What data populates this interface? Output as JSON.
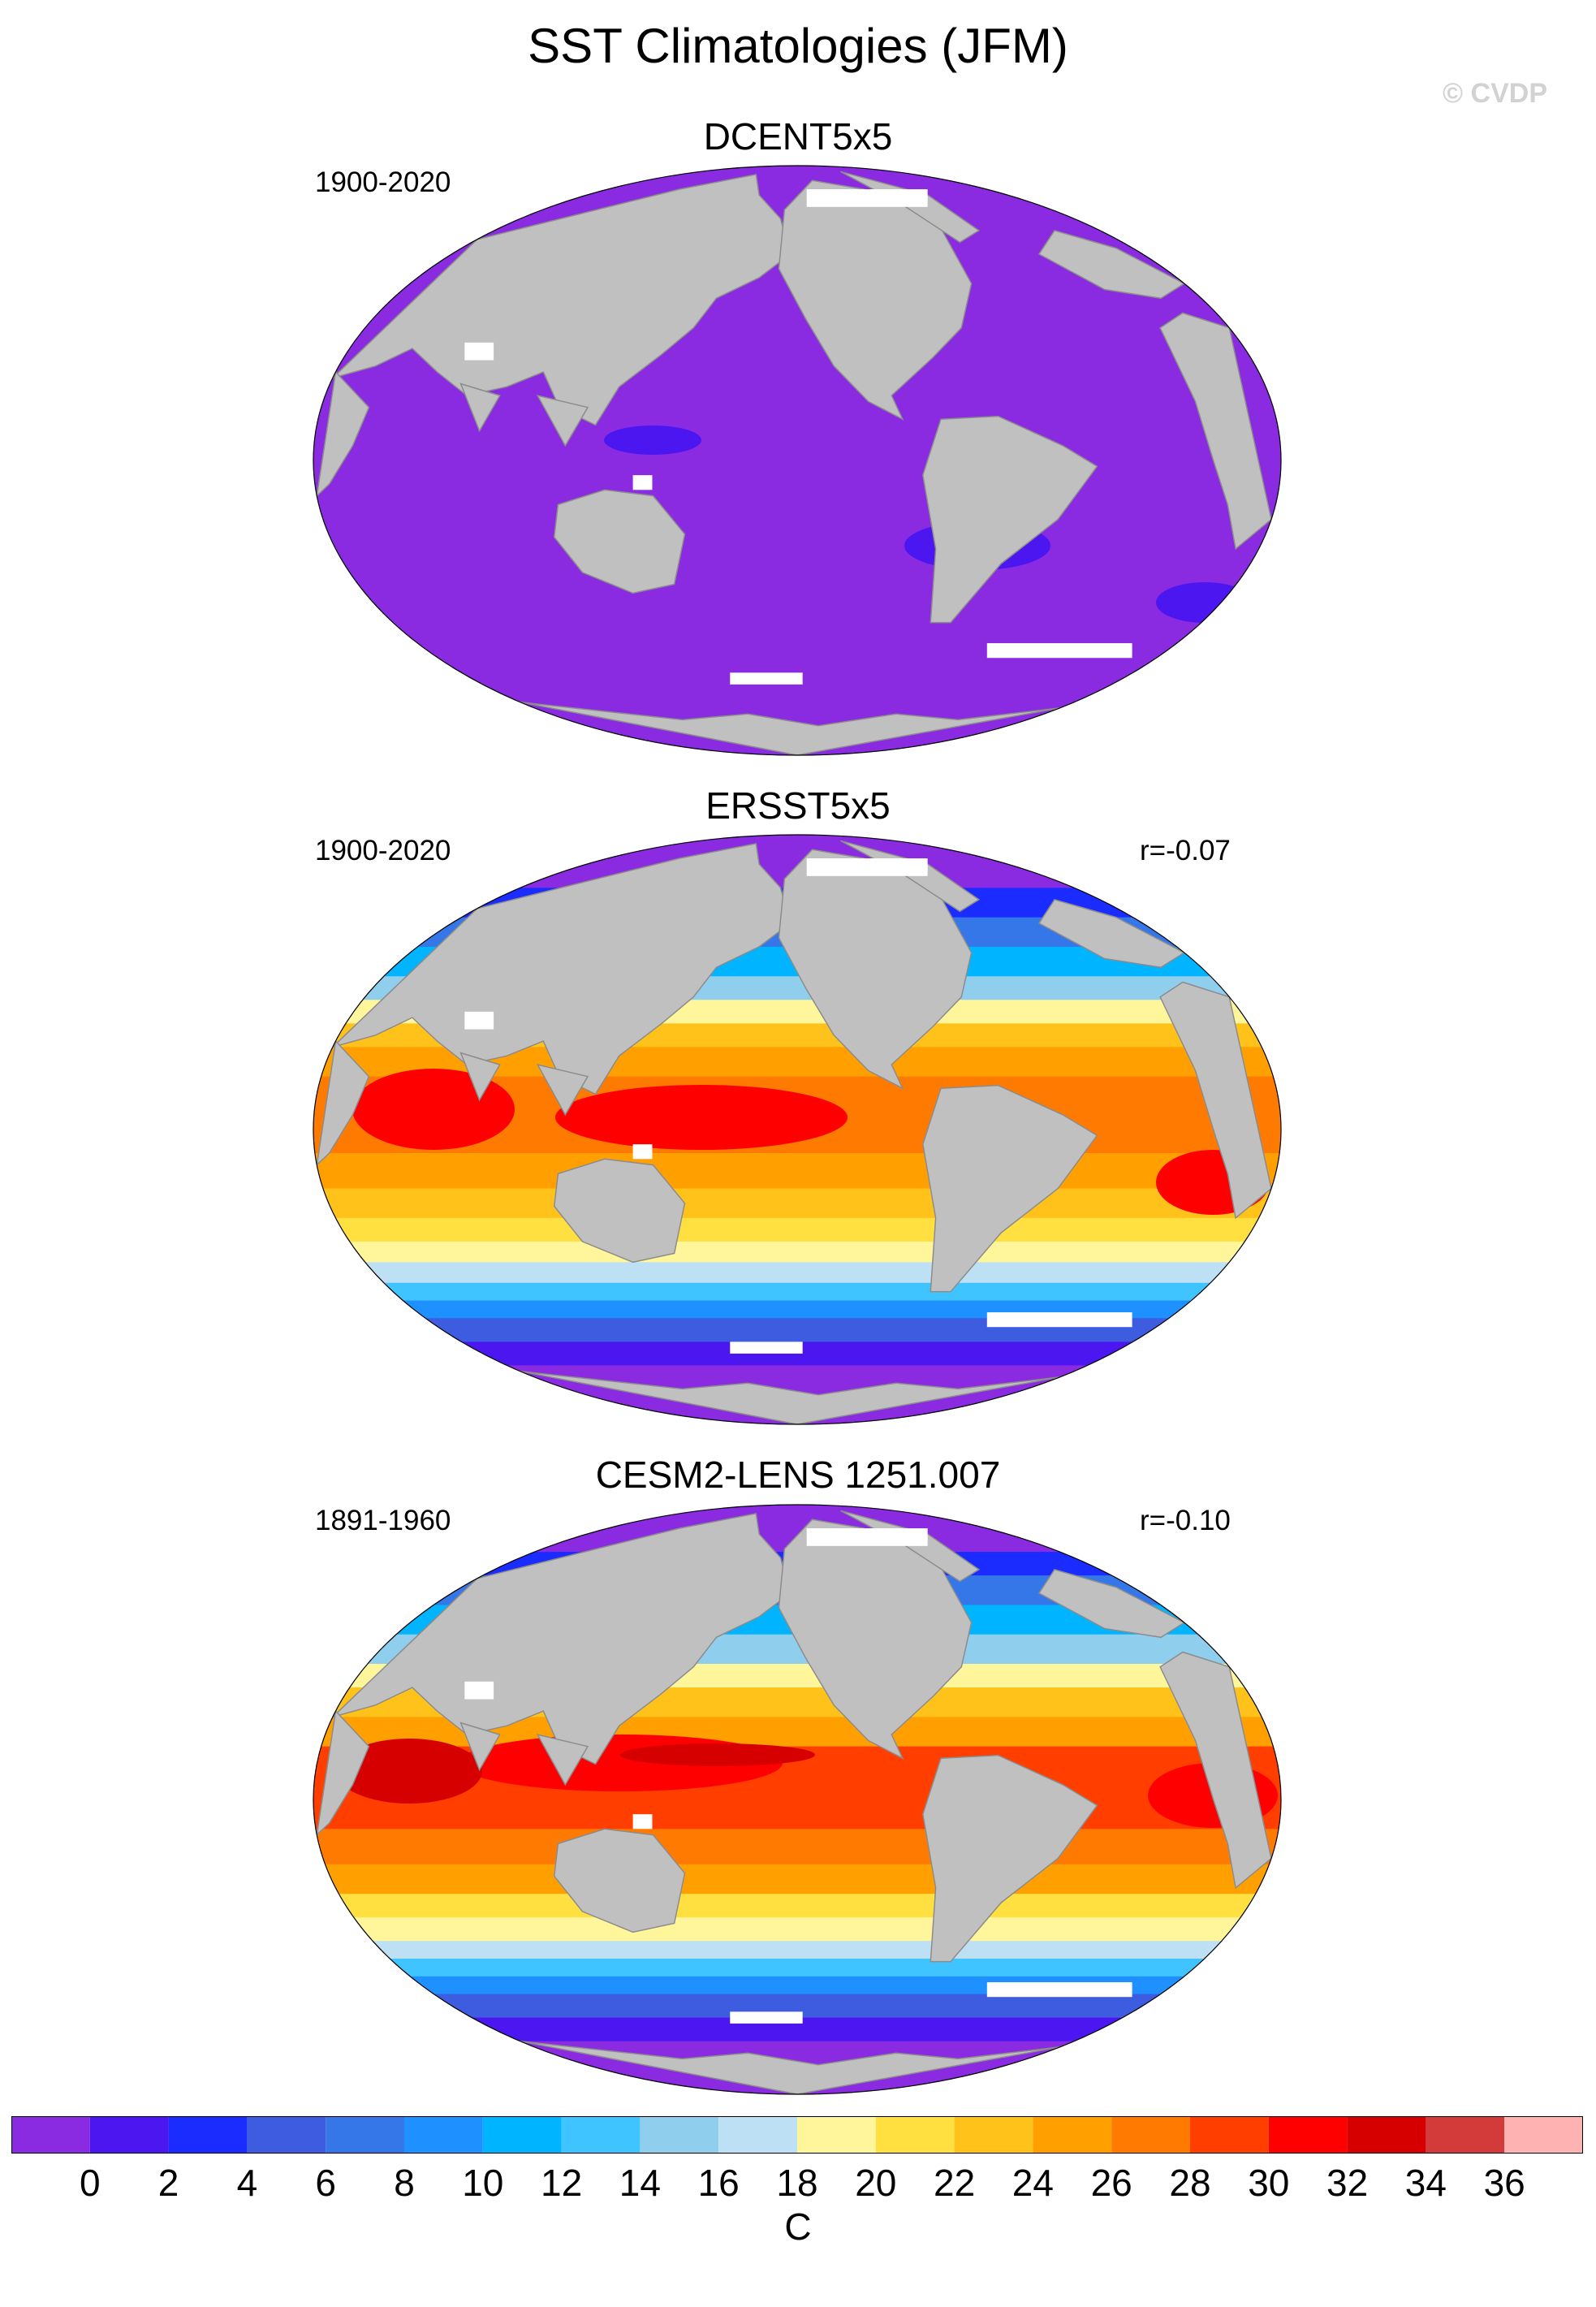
{
  "title": "SST Climatologies (JFM)",
  "watermark": "© CVDP",
  "panels": [
    {
      "title": "DCENT5x5",
      "period": "1900-2020",
      "corr": "",
      "field": "dcent"
    },
    {
      "title": "ERSST5x5",
      "period": "1900-2020",
      "corr": "r=-0.07",
      "field": "ersst"
    },
    {
      "title": "CESM2-LENS 1251.007",
      "period": "1891-1960",
      "corr": "r=-0.10",
      "field": "cesm"
    }
  ],
  "colorbar": {
    "units": "C",
    "ticks": [
      "0",
      "2",
      "4",
      "6",
      "8",
      "10",
      "12",
      "14",
      "16",
      "18",
      "20",
      "22",
      "24",
      "26",
      "28",
      "30",
      "32",
      "34",
      "36"
    ],
    "colors": [
      "#8a2be2",
      "#4b16f0",
      "#1a2cff",
      "#3d5ce0",
      "#3577e8",
      "#1e90ff",
      "#00b4ff",
      "#40c4ff",
      "#90ceee",
      "#bde0f5",
      "#fff59a",
      "#ffe040",
      "#ffc21a",
      "#ffa000",
      "#ff7a00",
      "#ff3e00",
      "#ff0000",
      "#d70000",
      "#d33a3a",
      "#ffb2b2"
    ]
  },
  "colors": {
    "land": "#c0c0c0",
    "missing": "#ffffff",
    "coast": "#8c8c8c"
  }
}
